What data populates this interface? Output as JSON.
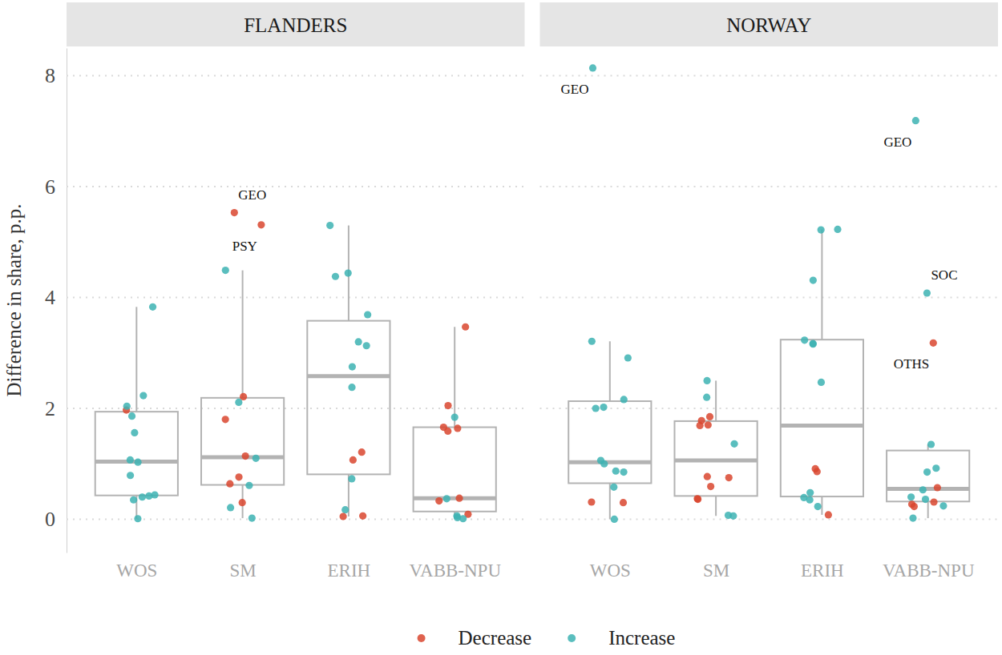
{
  "chart_data": {
    "type": "boxplot",
    "y_label": "Difference in share, p.p.",
    "categories": [
      "WOS",
      "SM",
      "ERIH",
      "VABB-NPU"
    ],
    "ylim": [
      -0.6,
      8.5
    ],
    "yticks": [
      0,
      2,
      4,
      6,
      8
    ],
    "grid": true,
    "legend": "bottom",
    "series": [
      {
        "name": "Decrease",
        "color": "#d9472f"
      },
      {
        "name": "Increase",
        "color": "#3db3b3"
      }
    ],
    "panels": [
      {
        "title": "FLANDERS",
        "groups": [
          {
            "box": {
              "whisker_low": 0.01,
              "q1": 0.43,
              "median": 1.04,
              "q3": 1.94,
              "whisker_high": 3.83
            },
            "points": [
              {
                "value": 3.83,
                "series": 1
              },
              {
                "value": 2.23,
                "series": 1
              },
              {
                "value": 1.97,
                "series": 0
              },
              {
                "value": 2.04,
                "series": 1
              },
              {
                "value": 1.86,
                "series": 1
              },
              {
                "value": 1.56,
                "series": 1
              },
              {
                "value": 1.07,
                "series": 1
              },
              {
                "value": 1.03,
                "series": 1
              },
              {
                "value": 0.79,
                "series": 1
              },
              {
                "value": 0.44,
                "series": 1
              },
              {
                "value": 0.42,
                "series": 1
              },
              {
                "value": 0.4,
                "series": 1
              },
              {
                "value": 0.35,
                "series": 1
              },
              {
                "value": 0.01,
                "series": 1
              }
            ]
          },
          {
            "box": {
              "whisker_low": 0.02,
              "q1": 0.62,
              "median": 1.12,
              "q3": 2.19,
              "whisker_high": 4.49
            },
            "points": [
              {
                "value": 5.53,
                "series": 0,
                "label": "GEO"
              },
              {
                "value": 5.31,
                "series": 0,
                "label": "PSY"
              },
              {
                "value": 4.49,
                "series": 1
              },
              {
                "value": 2.21,
                "series": 0
              },
              {
                "value": 2.11,
                "series": 1
              },
              {
                "value": 1.8,
                "series": 0
              },
              {
                "value": 1.14,
                "series": 0
              },
              {
                "value": 1.1,
                "series": 1
              },
              {
                "value": 0.76,
                "series": 0
              },
              {
                "value": 0.64,
                "series": 0
              },
              {
                "value": 0.61,
                "series": 1
              },
              {
                "value": 0.3,
                "series": 0
              },
              {
                "value": 0.21,
                "series": 1
              },
              {
                "value": 0.02,
                "series": 1
              }
            ]
          },
          {
            "box": {
              "whisker_low": 0.05,
              "q1": 0.81,
              "median": 2.58,
              "q3": 3.58,
              "whisker_high": 5.3
            },
            "points": [
              {
                "value": 5.3,
                "series": 1
              },
              {
                "value": 4.44,
                "series": 1
              },
              {
                "value": 4.38,
                "series": 1
              },
              {
                "value": 3.69,
                "series": 1
              },
              {
                "value": 3.2,
                "series": 1
              },
              {
                "value": 3.13,
                "series": 1
              },
              {
                "value": 2.75,
                "series": 1
              },
              {
                "value": 2.38,
                "series": 1
              },
              {
                "value": 1.21,
                "series": 0
              },
              {
                "value": 1.07,
                "series": 0
              },
              {
                "value": 0.73,
                "series": 1
              },
              {
                "value": 0.17,
                "series": 1
              },
              {
                "value": 0.06,
                "series": 0
              },
              {
                "value": 0.05,
                "series": 0
              }
            ]
          },
          {
            "box": {
              "whisker_low": 0.01,
              "q1": 0.14,
              "median": 0.38,
              "q3": 1.66,
              "whisker_high": 3.47
            },
            "points": [
              {
                "value": 3.47,
                "series": 0
              },
              {
                "value": 2.05,
                "series": 0
              },
              {
                "value": 1.84,
                "series": 1
              },
              {
                "value": 1.66,
                "series": 0
              },
              {
                "value": 1.64,
                "series": 0
              },
              {
                "value": 1.59,
                "series": 0
              },
              {
                "value": 0.38,
                "series": 0
              },
              {
                "value": 0.37,
                "series": 1
              },
              {
                "value": 0.33,
                "series": 0
              },
              {
                "value": 0.09,
                "series": 0
              },
              {
                "value": 0.06,
                "series": 1
              },
              {
                "value": 0.03,
                "series": 1
              },
              {
                "value": 0.01,
                "series": 1
              }
            ]
          }
        ]
      },
      {
        "title": "NORWAY",
        "groups": [
          {
            "box": {
              "whisker_low": 0.0,
              "q1": 0.65,
              "median": 1.03,
              "q3": 2.13,
              "whisker_high": 3.21
            },
            "points": [
              {
                "value": 8.14,
                "series": 1,
                "label": "GEO"
              },
              {
                "value": 3.21,
                "series": 1
              },
              {
                "value": 2.91,
                "series": 1
              },
              {
                "value": 2.16,
                "series": 1
              },
              {
                "value": 2.02,
                "series": 1
              },
              {
                "value": 2.0,
                "series": 1
              },
              {
                "value": 1.06,
                "series": 1
              },
              {
                "value": 1.0,
                "series": 1
              },
              {
                "value": 0.87,
                "series": 1
              },
              {
                "value": 0.85,
                "series": 1
              },
              {
                "value": 0.58,
                "series": 1
              },
              {
                "value": 0.31,
                "series": 0
              },
              {
                "value": 0.3,
                "series": 0
              },
              {
                "value": 0.0,
                "series": 1
              }
            ]
          },
          {
            "box": {
              "whisker_low": 0.06,
              "q1": 0.42,
              "median": 1.06,
              "q3": 1.77,
              "whisker_high": 2.5
            },
            "points": [
              {
                "value": 2.5,
                "series": 1
              },
              {
                "value": 2.2,
                "series": 1
              },
              {
                "value": 1.85,
                "series": 0
              },
              {
                "value": 1.78,
                "series": 0
              },
              {
                "value": 1.7,
                "series": 0
              },
              {
                "value": 1.69,
                "series": 0
              },
              {
                "value": 1.36,
                "series": 1
              },
              {
                "value": 0.77,
                "series": 0
              },
              {
                "value": 0.75,
                "series": 0
              },
              {
                "value": 0.59,
                "series": 0
              },
              {
                "value": 0.37,
                "series": 0
              },
              {
                "value": 0.36,
                "series": 0
              },
              {
                "value": 0.07,
                "series": 1
              },
              {
                "value": 0.06,
                "series": 1
              }
            ]
          },
          {
            "box": {
              "whisker_low": 0.08,
              "q1": 0.41,
              "median": 1.69,
              "q3": 3.24,
              "whisker_high": 5.23
            },
            "points": [
              {
                "value": 5.23,
                "series": 1
              },
              {
                "value": 5.22,
                "series": 1
              },
              {
                "value": 4.31,
                "series": 1
              },
              {
                "value": 3.23,
                "series": 1
              },
              {
                "value": 3.17,
                "series": 1
              },
              {
                "value": 3.16,
                "series": 1
              },
              {
                "value": 2.47,
                "series": 1
              },
              {
                "value": 0.91,
                "series": 0
              },
              {
                "value": 0.86,
                "series": 0
              },
              {
                "value": 0.48,
                "series": 1
              },
              {
                "value": 0.39,
                "series": 1
              },
              {
                "value": 0.35,
                "series": 1
              },
              {
                "value": 0.23,
                "series": 1
              },
              {
                "value": 0.08,
                "series": 0
              }
            ]
          },
          {
            "box": {
              "whisker_low": 0.02,
              "q1": 0.32,
              "median": 0.55,
              "q3": 1.24,
              "whisker_high": 1.35
            },
            "points": [
              {
                "value": 7.19,
                "series": 1,
                "label": "GEO"
              },
              {
                "value": 4.08,
                "series": 1,
                "label": "SOC"
              },
              {
                "value": 3.18,
                "series": 0,
                "label": "OTHS"
              },
              {
                "value": 1.35,
                "series": 1
              },
              {
                "value": 0.92,
                "series": 1
              },
              {
                "value": 0.85,
                "series": 1
              },
              {
                "value": 0.57,
                "series": 0
              },
              {
                "value": 0.53,
                "series": 1
              },
              {
                "value": 0.4,
                "series": 1
              },
              {
                "value": 0.36,
                "series": 1
              },
              {
                "value": 0.31,
                "series": 0
              },
              {
                "value": 0.27,
                "series": 0
              },
              {
                "value": 0.24,
                "series": 1
              },
              {
                "value": 0.23,
                "series": 0
              },
              {
                "value": 0.02,
                "series": 1
              }
            ]
          }
        ]
      }
    ]
  }
}
